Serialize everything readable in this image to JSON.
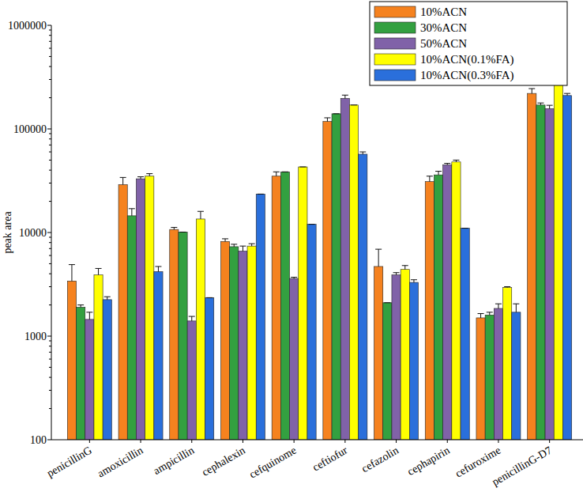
{
  "chart_data": {
    "type": "bar",
    "y_label": "peak area",
    "categories": [
      "penicillinG",
      "amoxicillin",
      "ampicillin",
      "cephalexin",
      "cefquinome",
      "ceftiofur",
      "cefazolin",
      "cephapirin",
      "cefuroxime",
      "penicillinG-D7"
    ],
    "series": [
      {
        "name": "10%ACN",
        "color": "#F5821F",
        "values": [
          3400,
          29000,
          10700,
          8200,
          35000,
          118000,
          4700,
          31000,
          1500,
          220000
        ],
        "errors": [
          1500,
          5000,
          500,
          500,
          3500,
          10000,
          2200,
          4000,
          150,
          25000
        ]
      },
      {
        "name": "30%ACN",
        "color": "#33A040",
        "values": [
          1900,
          14500,
          10100,
          7300,
          38500,
          140000,
          2100,
          36000,
          1600,
          170000
        ],
        "errors": [
          100,
          2500,
          0,
          400,
          0,
          0,
          0,
          3000,
          100,
          8000
        ]
      },
      {
        "name": "50%ACN",
        "color": "#8062A8",
        "values": [
          1450,
          33000,
          1400,
          6600,
          3600,
          197000,
          3900,
          45000,
          1850,
          157000
        ],
        "errors": [
          250,
          1500,
          150,
          800,
          100,
          15000,
          200,
          1500,
          200,
          12000
        ]
      },
      {
        "name": "10%ACN(0.1%FA)",
        "color": "#FFFF00",
        "values": [
          3900,
          35000,
          13500,
          7400,
          43000,
          170000,
          4400,
          48000,
          2950,
          285000
        ],
        "errors": [
          600,
          2000,
          2500,
          400,
          0,
          0,
          400,
          2000,
          50,
          30000
        ]
      },
      {
        "name": "10%ACN(0.3%FA)",
        "color": "#2A6FDB",
        "values": [
          2250,
          4200,
          2350,
          23500,
          12000,
          57000,
          3300,
          11000,
          1700,
          210000
        ],
        "errors": [
          150,
          500,
          0,
          0,
          0,
          3000,
          200,
          0,
          350,
          10000
        ]
      }
    ],
    "ylim": [
      100,
      1000000
    ],
    "yticks": [
      100,
      1000,
      10000,
      100000,
      1000000
    ],
    "log": "y",
    "grid": false,
    "legend": "upper right"
  }
}
